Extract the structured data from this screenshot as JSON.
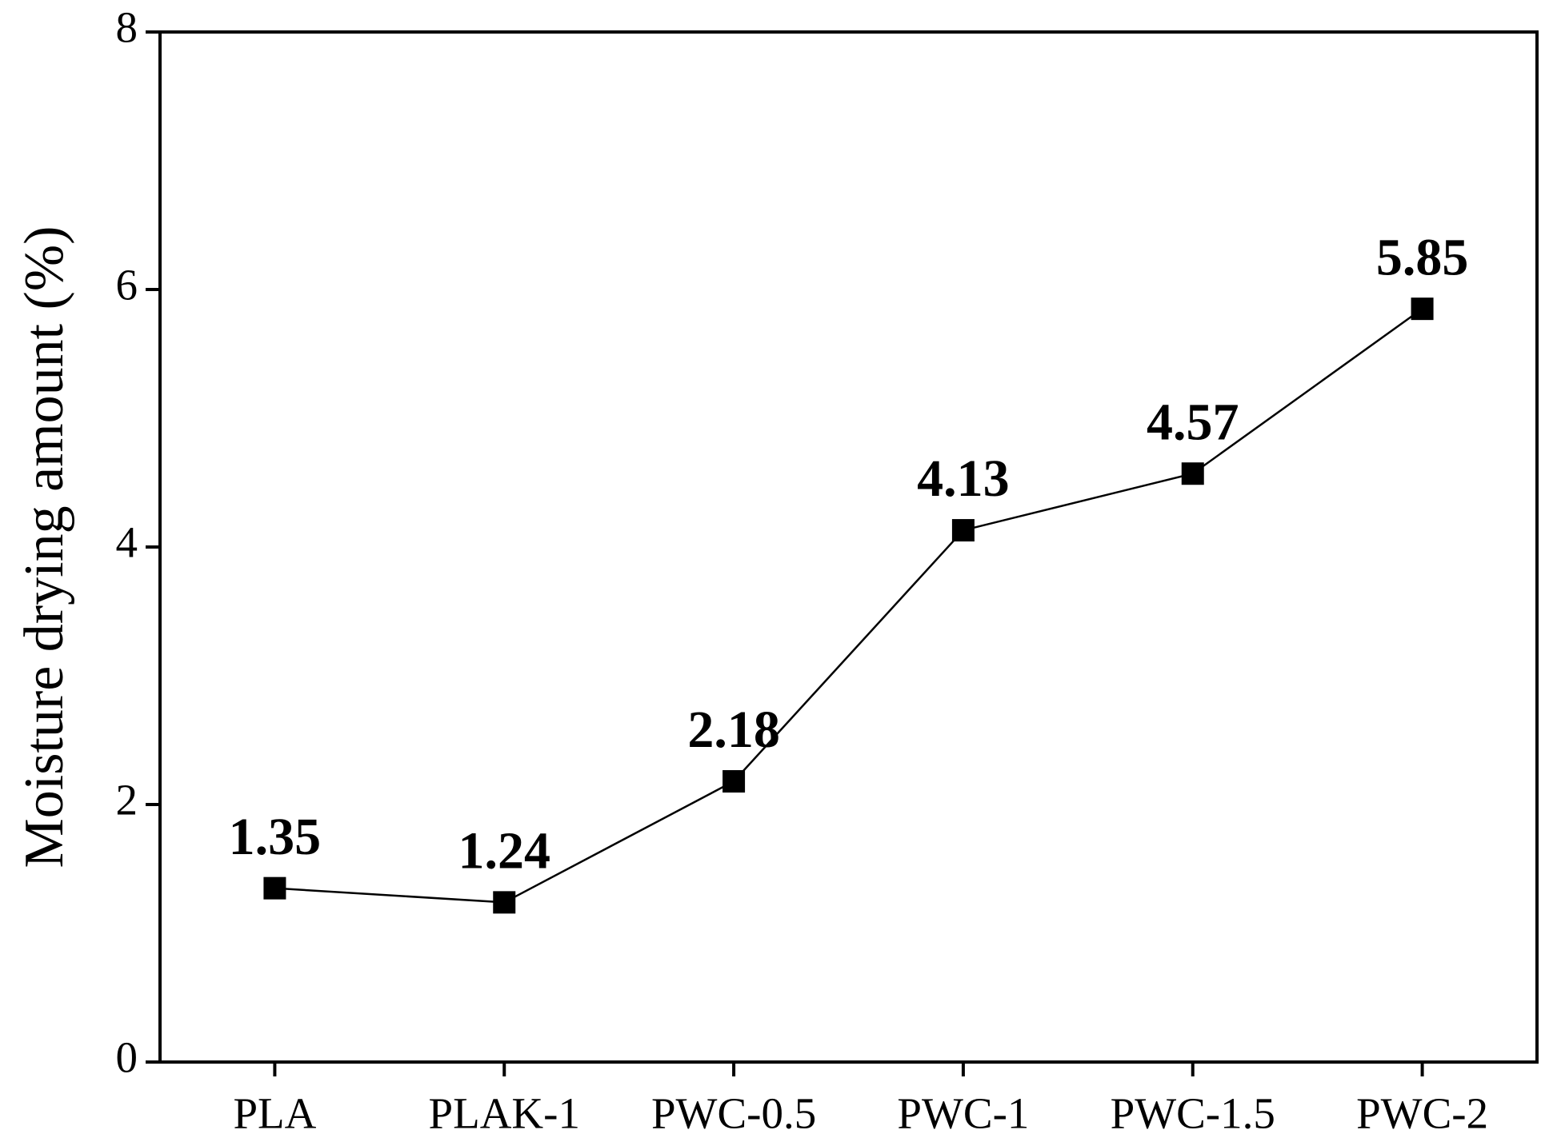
{
  "chart_data": {
    "type": "line",
    "y_label": "Moisture drying amount (%)",
    "categories": [
      "PLA",
      "PLAK-1",
      "PWC-0.5",
      "PWC-1",
      "PWC-1.5",
      "PWC-2"
    ],
    "values": [
      1.35,
      1.24,
      2.18,
      4.13,
      4.57,
      5.85
    ],
    "color": "#000000",
    "marker": "square",
    "ylim": [
      0,
      8
    ],
    "yticks": [
      0,
      2,
      4,
      6,
      8
    ],
    "grid": false
  }
}
